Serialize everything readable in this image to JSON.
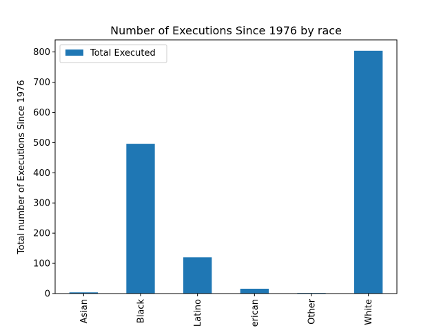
{
  "chart_data": {
    "type": "bar",
    "title": "Number of Executions Since 1976 by race",
    "xlabel": "",
    "ylabel": "Total number of Executions Since 1976",
    "categories": [
      "Asian",
      "Black",
      "Latino",
      "erican",
      "Other",
      "White"
    ],
    "series": [
      {
        "name": "Total Executed",
        "values": [
          4,
          496,
          120,
          16,
          2,
          804
        ],
        "color": "#1f77b4"
      }
    ],
    "ylim": [
      0,
      840
    ],
    "yticks": [
      0,
      100,
      200,
      300,
      400,
      500,
      600,
      700,
      800
    ],
    "grid": false,
    "legend_position": "top-left"
  }
}
